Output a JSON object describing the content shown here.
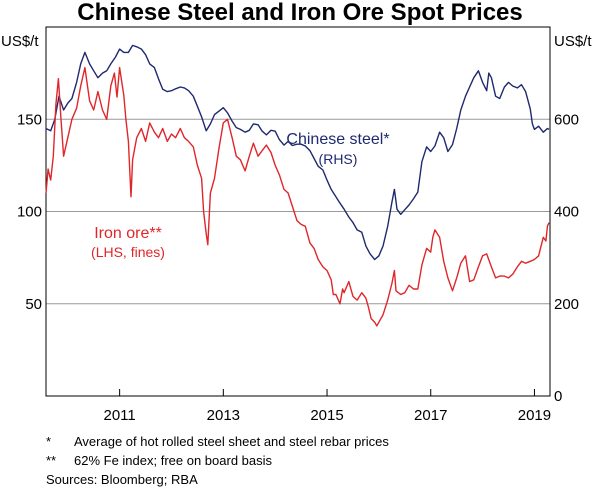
{
  "chart_data": {
    "type": "line",
    "title": "Chinese Steel and Iron Ore Spot Prices",
    "left_axis": {
      "unit": "US$/t",
      "ylim": [
        0,
        200
      ],
      "ticks": [
        50,
        100,
        150
      ]
    },
    "right_axis": {
      "unit": "US$/t",
      "ylim": [
        0,
        800
      ],
      "ticks": [
        0,
        200,
        400,
        600
      ]
    },
    "x_axis": {
      "range": [
        2009.58,
        2019.3
      ],
      "ticks": [
        2011,
        2013,
        2015,
        2017,
        2019
      ],
      "tick_labels": [
        "2011",
        "2013",
        "2015",
        "2017",
        "2019"
      ]
    },
    "gridlines": true,
    "series": [
      {
        "name": "Iron ore",
        "label": "Iron ore**",
        "sublabel": "(LHS, fines)",
        "axis": "left",
        "color": "#e0262a",
        "points": [
          [
            2009.58,
            110
          ],
          [
            2009.62,
            123
          ],
          [
            2009.67,
            117
          ],
          [
            2009.72,
            130
          ],
          [
            2009.77,
            158
          ],
          [
            2009.82,
            172
          ],
          [
            2009.87,
            150
          ],
          [
            2009.92,
            130
          ],
          [
            2010.0,
            140
          ],
          [
            2010.08,
            150
          ],
          [
            2010.17,
            156
          ],
          [
            2010.25,
            168
          ],
          [
            2010.33,
            178
          ],
          [
            2010.42,
            160
          ],
          [
            2010.5,
            155
          ],
          [
            2010.58,
            165
          ],
          [
            2010.67,
            155
          ],
          [
            2010.75,
            150
          ],
          [
            2010.83,
            168
          ],
          [
            2010.9,
            175
          ],
          [
            2010.95,
            162
          ],
          [
            2011.0,
            178
          ],
          [
            2011.08,
            163
          ],
          [
            2011.12,
            150
          ],
          [
            2011.17,
            138
          ],
          [
            2011.22,
            108
          ],
          [
            2011.25,
            128
          ],
          [
            2011.33,
            140
          ],
          [
            2011.42,
            145
          ],
          [
            2011.5,
            138
          ],
          [
            2011.58,
            148
          ],
          [
            2011.67,
            143
          ],
          [
            2011.75,
            140
          ],
          [
            2011.83,
            145
          ],
          [
            2011.92,
            138
          ],
          [
            2012.0,
            142
          ],
          [
            2012.08,
            140
          ],
          [
            2012.17,
            145
          ],
          [
            2012.25,
            140
          ],
          [
            2012.33,
            138
          ],
          [
            2012.42,
            135
          ],
          [
            2012.5,
            125
          ],
          [
            2012.58,
            118
          ],
          [
            2012.62,
            100
          ],
          [
            2012.67,
            88
          ],
          [
            2012.7,
            82
          ],
          [
            2012.75,
            110
          ],
          [
            2012.83,
            118
          ],
          [
            2012.92,
            135
          ],
          [
            2013.0,
            148
          ],
          [
            2013.08,
            150
          ],
          [
            2013.17,
            140
          ],
          [
            2013.25,
            130
          ],
          [
            2013.33,
            128
          ],
          [
            2013.42,
            122
          ],
          [
            2013.5,
            130
          ],
          [
            2013.58,
            137
          ],
          [
            2013.67,
            130
          ],
          [
            2013.75,
            133
          ],
          [
            2013.83,
            136
          ],
          [
            2013.92,
            132
          ],
          [
            2014.0,
            125
          ],
          [
            2014.08,
            120
          ],
          [
            2014.17,
            112
          ],
          [
            2014.25,
            110
          ],
          [
            2014.33,
            103
          ],
          [
            2014.42,
            95
          ],
          [
            2014.5,
            93
          ],
          [
            2014.58,
            92
          ],
          [
            2014.67,
            83
          ],
          [
            2014.75,
            80
          ],
          [
            2014.83,
            74
          ],
          [
            2014.92,
            70
          ],
          [
            2015.0,
            68
          ],
          [
            2015.08,
            63
          ],
          [
            2015.12,
            55
          ],
          [
            2015.17,
            55
          ],
          [
            2015.25,
            50
          ],
          [
            2015.3,
            58
          ],
          [
            2015.33,
            56
          ],
          [
            2015.42,
            62
          ],
          [
            2015.5,
            54
          ],
          [
            2015.58,
            52
          ],
          [
            2015.67,
            56
          ],
          [
            2015.75,
            53
          ],
          [
            2015.8,
            48
          ],
          [
            2015.85,
            42
          ],
          [
            2015.92,
            40
          ],
          [
            2015.96,
            38
          ],
          [
            2016.0,
            40
          ],
          [
            2016.08,
            44
          ],
          [
            2016.17,
            52
          ],
          [
            2016.25,
            61
          ],
          [
            2016.3,
            68
          ],
          [
            2016.33,
            57
          ],
          [
            2016.42,
            55
          ],
          [
            2016.5,
            56
          ],
          [
            2016.58,
            60
          ],
          [
            2016.67,
            58
          ],
          [
            2016.75,
            58
          ],
          [
            2016.83,
            71
          ],
          [
            2016.92,
            80
          ],
          [
            2017.0,
            78
          ],
          [
            2017.04,
            86
          ],
          [
            2017.08,
            90
          ],
          [
            2017.17,
            86
          ],
          [
            2017.25,
            73
          ],
          [
            2017.33,
            64
          ],
          [
            2017.42,
            57
          ],
          [
            2017.5,
            64
          ],
          [
            2017.58,
            72
          ],
          [
            2017.67,
            76
          ],
          [
            2017.75,
            62
          ],
          [
            2017.83,
            63
          ],
          [
            2017.92,
            70
          ],
          [
            2018.0,
            76
          ],
          [
            2018.08,
            77
          ],
          [
            2018.17,
            70
          ],
          [
            2018.25,
            64
          ],
          [
            2018.33,
            65
          ],
          [
            2018.42,
            65
          ],
          [
            2018.5,
            64
          ],
          [
            2018.58,
            66
          ],
          [
            2018.67,
            70
          ],
          [
            2018.75,
            73
          ],
          [
            2018.83,
            72
          ],
          [
            2018.92,
            73
          ],
          [
            2019.0,
            74
          ],
          [
            2019.08,
            76
          ],
          [
            2019.17,
            86
          ],
          [
            2019.22,
            84
          ],
          [
            2019.25,
            92
          ],
          [
            2019.28,
            94
          ]
        ]
      },
      {
        "name": "Chinese steel",
        "label": "Chinese steel*",
        "sublabel": "(RHS)",
        "axis": "right",
        "color": "#1f2a6e",
        "points": [
          [
            2009.58,
            580
          ],
          [
            2009.67,
            575
          ],
          [
            2009.75,
            600
          ],
          [
            2009.83,
            650
          ],
          [
            2009.92,
            620
          ],
          [
            2010.0,
            635
          ],
          [
            2010.08,
            645
          ],
          [
            2010.17,
            680
          ],
          [
            2010.25,
            720
          ],
          [
            2010.33,
            745
          ],
          [
            2010.42,
            720
          ],
          [
            2010.5,
            705
          ],
          [
            2010.58,
            690
          ],
          [
            2010.67,
            700
          ],
          [
            2010.75,
            705
          ],
          [
            2010.83,
            720
          ],
          [
            2010.92,
            735
          ],
          [
            2011.0,
            752
          ],
          [
            2011.08,
            745
          ],
          [
            2011.17,
            745
          ],
          [
            2011.25,
            760
          ],
          [
            2011.33,
            757
          ],
          [
            2011.42,
            752
          ],
          [
            2011.5,
            740
          ],
          [
            2011.58,
            720
          ],
          [
            2011.67,
            712
          ],
          [
            2011.75,
            688
          ],
          [
            2011.83,
            665
          ],
          [
            2011.92,
            660
          ],
          [
            2012.0,
            662
          ],
          [
            2012.08,
            666
          ],
          [
            2012.17,
            670
          ],
          [
            2012.25,
            668
          ],
          [
            2012.33,
            662
          ],
          [
            2012.42,
            650
          ],
          [
            2012.5,
            628
          ],
          [
            2012.58,
            605
          ],
          [
            2012.67,
            575
          ],
          [
            2012.75,
            590
          ],
          [
            2012.83,
            610
          ],
          [
            2012.92,
            618
          ],
          [
            2013.0,
            625
          ],
          [
            2013.08,
            614
          ],
          [
            2013.17,
            596
          ],
          [
            2013.25,
            582
          ],
          [
            2013.33,
            578
          ],
          [
            2013.42,
            572
          ],
          [
            2013.5,
            576
          ],
          [
            2013.58,
            590
          ],
          [
            2013.67,
            588
          ],
          [
            2013.75,
            574
          ],
          [
            2013.83,
            566
          ],
          [
            2013.92,
            576
          ],
          [
            2014.0,
            574
          ],
          [
            2014.08,
            556
          ],
          [
            2014.17,
            544
          ],
          [
            2014.25,
            552
          ],
          [
            2014.33,
            543
          ],
          [
            2014.42,
            546
          ],
          [
            2014.5,
            546
          ],
          [
            2014.58,
            542
          ],
          [
            2014.67,
            532
          ],
          [
            2014.75,
            515
          ],
          [
            2014.83,
            498
          ],
          [
            2014.92,
            490
          ],
          [
            2015.0,
            468
          ],
          [
            2015.08,
            448
          ],
          [
            2015.17,
            432
          ],
          [
            2015.25,
            418
          ],
          [
            2015.33,
            405
          ],
          [
            2015.42,
            388
          ],
          [
            2015.5,
            376
          ],
          [
            2015.58,
            360
          ],
          [
            2015.67,
            355
          ],
          [
            2015.75,
            325
          ],
          [
            2015.83,
            308
          ],
          [
            2015.92,
            296
          ],
          [
            2016.0,
            304
          ],
          [
            2016.08,
            325
          ],
          [
            2016.17,
            368
          ],
          [
            2016.25,
            420
          ],
          [
            2016.3,
            448
          ],
          [
            2016.35,
            405
          ],
          [
            2016.42,
            394
          ],
          [
            2016.5,
            404
          ],
          [
            2016.58,
            414
          ],
          [
            2016.67,
            428
          ],
          [
            2016.75,
            442
          ],
          [
            2016.83,
            508
          ],
          [
            2016.92,
            540
          ],
          [
            2017.0,
            530
          ],
          [
            2017.08,
            542
          ],
          [
            2017.17,
            572
          ],
          [
            2017.25,
            560
          ],
          [
            2017.33,
            530
          ],
          [
            2017.42,
            545
          ],
          [
            2017.5,
            580
          ],
          [
            2017.58,
            620
          ],
          [
            2017.67,
            650
          ],
          [
            2017.75,
            670
          ],
          [
            2017.83,
            690
          ],
          [
            2017.92,
            705
          ],
          [
            2018.0,
            680
          ],
          [
            2018.08,
            662
          ],
          [
            2018.12,
            700
          ],
          [
            2018.17,
            690
          ],
          [
            2018.25,
            650
          ],
          [
            2018.33,
            645
          ],
          [
            2018.42,
            670
          ],
          [
            2018.5,
            680
          ],
          [
            2018.58,
            672
          ],
          [
            2018.67,
            668
          ],
          [
            2018.75,
            675
          ],
          [
            2018.83,
            660
          ],
          [
            2018.92,
            622
          ],
          [
            2018.96,
            590
          ],
          [
            2019.0,
            578
          ],
          [
            2019.08,
            585
          ],
          [
            2019.17,
            572
          ],
          [
            2019.25,
            580
          ],
          [
            2019.28,
            578
          ]
        ]
      }
    ]
  },
  "footnotes": [
    {
      "mark": "*",
      "text": "Average of hot rolled steel sheet and steel rebar prices"
    },
    {
      "mark": "**",
      "text": "62% Fe index; free on board basis"
    }
  ],
  "sources": "Sources: Bloomberg; RBA"
}
